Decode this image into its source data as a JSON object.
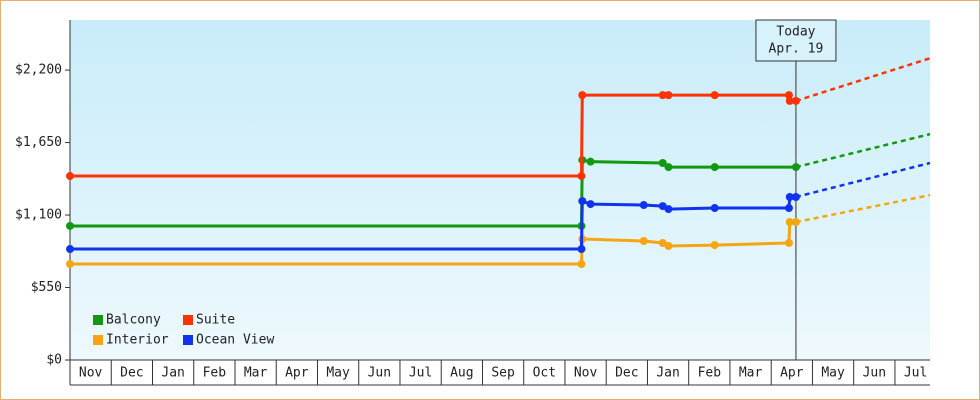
{
  "chart_data": {
    "type": "line",
    "annotation": [
      "Today",
      "Apr. 19"
    ],
    "annotation_x": 17.6,
    "xlim": [
      0,
      20.85
    ],
    "xticks": [
      {
        "value": 0.5,
        "label": "Nov"
      },
      {
        "value": 1.5,
        "label": "Dec"
      },
      {
        "value": 2.5,
        "label": "Jan"
      },
      {
        "value": 3.5,
        "label": "Feb"
      },
      {
        "value": 4.5,
        "label": "Mar"
      },
      {
        "value": 5.5,
        "label": "Apr"
      },
      {
        "value": 6.5,
        "label": "May"
      },
      {
        "value": 7.5,
        "label": "Jun"
      },
      {
        "value": 8.5,
        "label": "Jul"
      },
      {
        "value": 9.5,
        "label": "Aug"
      },
      {
        "value": 10.5,
        "label": "Sep"
      },
      {
        "value": 11.5,
        "label": "Oct"
      },
      {
        "value": 12.5,
        "label": "Nov"
      },
      {
        "value": 13.5,
        "label": "Dec"
      },
      {
        "value": 14.5,
        "label": "Jan"
      },
      {
        "value": 15.5,
        "label": "Feb"
      },
      {
        "value": 16.5,
        "label": "Mar"
      },
      {
        "value": 17.5,
        "label": "Apr"
      },
      {
        "value": 18.5,
        "label": "May"
      },
      {
        "value": 19.5,
        "label": "Jun"
      },
      {
        "value": 20.5,
        "label": "Jul"
      }
    ],
    "ylim": [
      0,
      2580
    ],
    "yticks": [
      {
        "value": 0,
        "label": "$0"
      },
      {
        "value": 550,
        "label": "$550"
      },
      {
        "value": 1100,
        "label": "$1,100"
      },
      {
        "value": 1650,
        "label": "$1,650"
      },
      {
        "value": 2200,
        "label": "$2,200"
      }
    ],
    "legend": "bottom-left",
    "series": [
      {
        "name": "Balcony",
        "color": "#119911",
        "x": [
          0,
          12.4,
          12.42,
          12.62,
          14.37,
          14.51,
          15.63,
          17.6
        ],
        "values": [
          1017,
          1017,
          1517,
          1505,
          1495,
          1464,
          1464,
          1464
        ],
        "forecast": {
          "x": [
            17.6,
            20.85
          ],
          "values": [
            1464,
            1714
          ]
        }
      },
      {
        "name": "Suite",
        "color": "#ff3300",
        "x": [
          0,
          12.4,
          12.42,
          14.37,
          14.51,
          15.63,
          17.43,
          17.45,
          17.6
        ],
        "values": [
          1396,
          1396,
          2010,
          2010,
          2010,
          2010,
          2010,
          1966,
          1966
        ],
        "forecast": {
          "x": [
            17.6,
            20.85
          ],
          "values": [
            1966,
            2290
          ]
        }
      },
      {
        "name": "Interior",
        "color": "#f5a511",
        "x": [
          0,
          12.4,
          12.42,
          13.91,
          14.37,
          14.51,
          15.63,
          17.43,
          17.45,
          17.6
        ],
        "values": [
          728,
          728,
          918,
          903,
          888,
          865,
          872,
          888,
          1047,
          1047
        ],
        "forecast": {
          "x": [
            17.6,
            20.85
          ],
          "values": [
            1047,
            1251
          ]
        }
      },
      {
        "name": "Ocean View",
        "color": "#1133ee",
        "x": [
          0,
          12.4,
          12.42,
          12.62,
          13.91,
          14.37,
          14.51,
          15.63,
          17.43,
          17.45,
          17.6
        ],
        "values": [
          842,
          842,
          1206,
          1183,
          1176,
          1168,
          1145,
          1153,
          1153,
          1237,
          1237
        ],
        "forecast": {
          "x": [
            17.6,
            20.85
          ],
          "values": [
            1237,
            1495
          ]
        }
      }
    ]
  }
}
